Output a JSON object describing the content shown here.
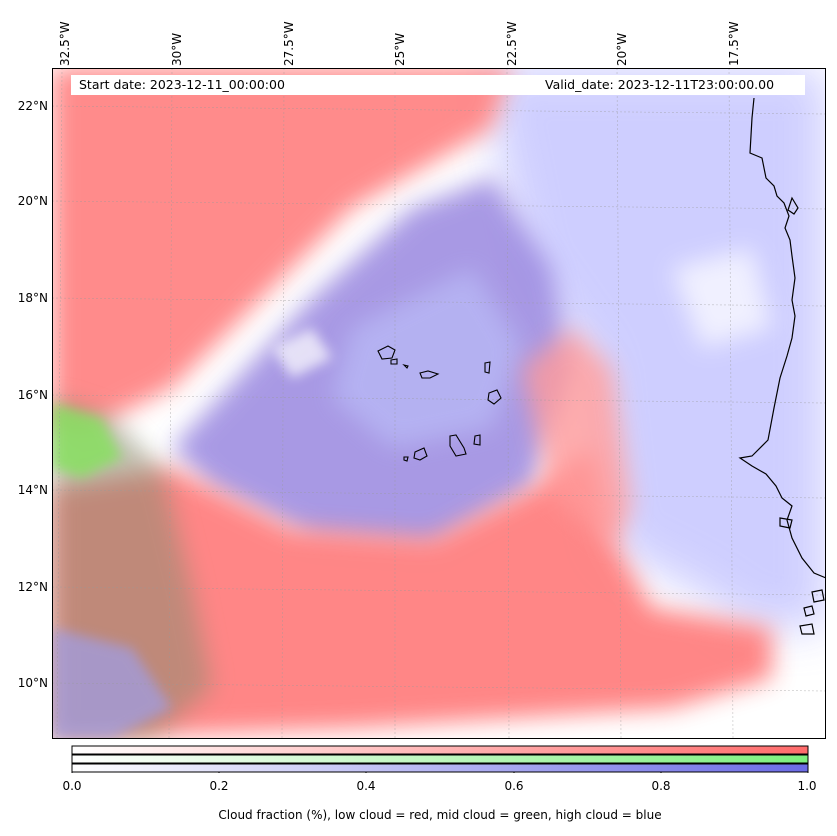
{
  "map": {
    "start_date": "Start date: 2023-12-11_00:00:00",
    "valid_date": "Valid_date: 2023-12-11T23:00:00.00",
    "lon_labels": [
      "32.5°W",
      "30°W",
      "27.5°W",
      "25°W",
      "22.5°W",
      "20°W",
      "17.5°W"
    ],
    "lat_labels": [
      "22°N",
      "20°N",
      "18°N",
      "16°N",
      "14°N",
      "12°N",
      "10°N"
    ]
  },
  "colorbar": {
    "ticks": [
      "0.0",
      "0.2",
      "0.4",
      "0.6",
      "0.8",
      "1.0"
    ],
    "title": "Cloud fraction (%), low cloud = red, mid cloud = green, high cloud = blue",
    "colors": {
      "low": "#ff6b6b",
      "mid": "#7df07d",
      "high": "#6b6be6"
    }
  }
}
